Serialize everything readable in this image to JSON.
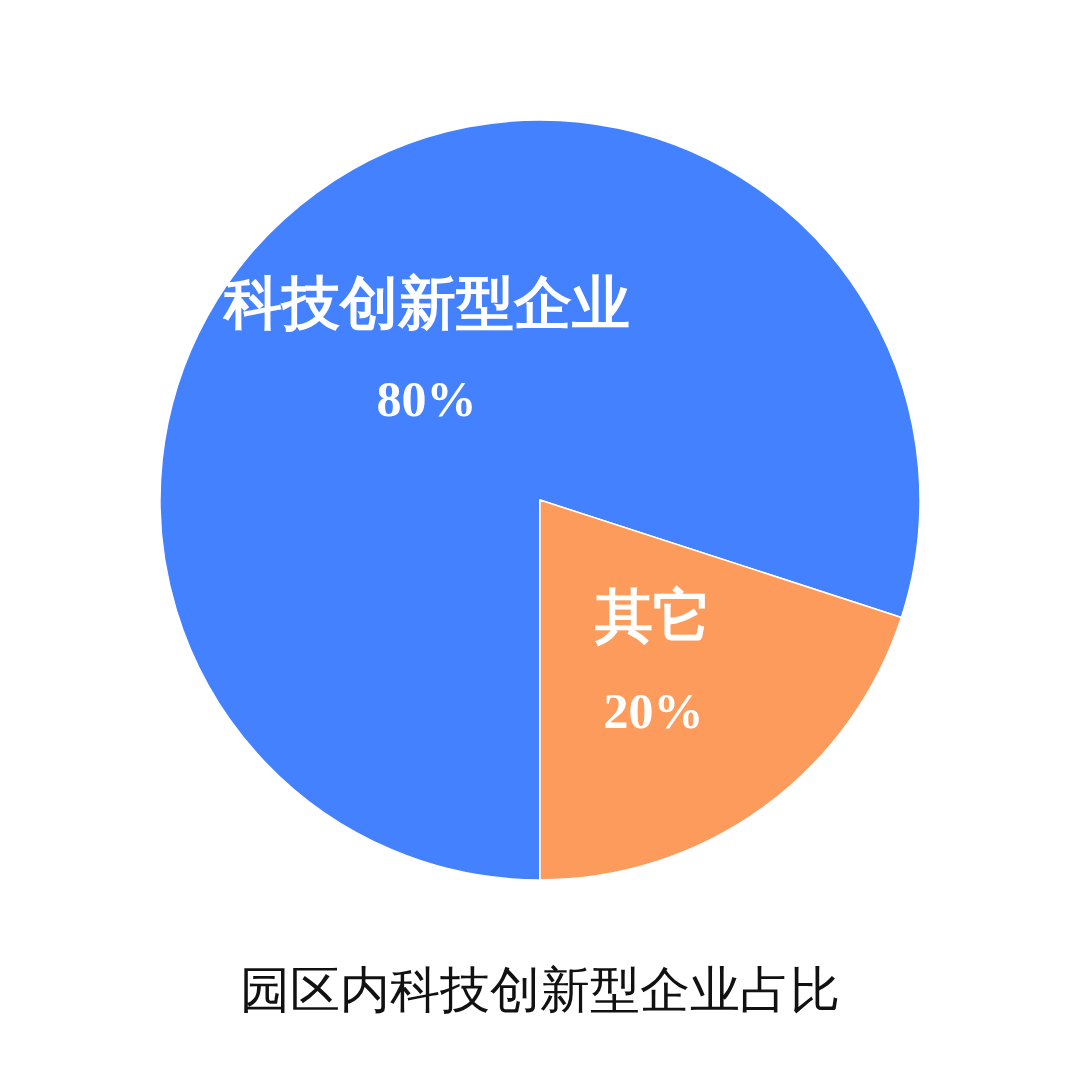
{
  "chart_data": {
    "type": "pie",
    "title": "园区内科技创新型企业占比",
    "categories": [
      "科技创新型企业",
      "其它"
    ],
    "values": [
      80,
      20
    ],
    "colors": [
      "#4481fe",
      "#fd9b5c"
    ],
    "value_labels": [
      "80%",
      "20%"
    ],
    "legend": false
  }
}
